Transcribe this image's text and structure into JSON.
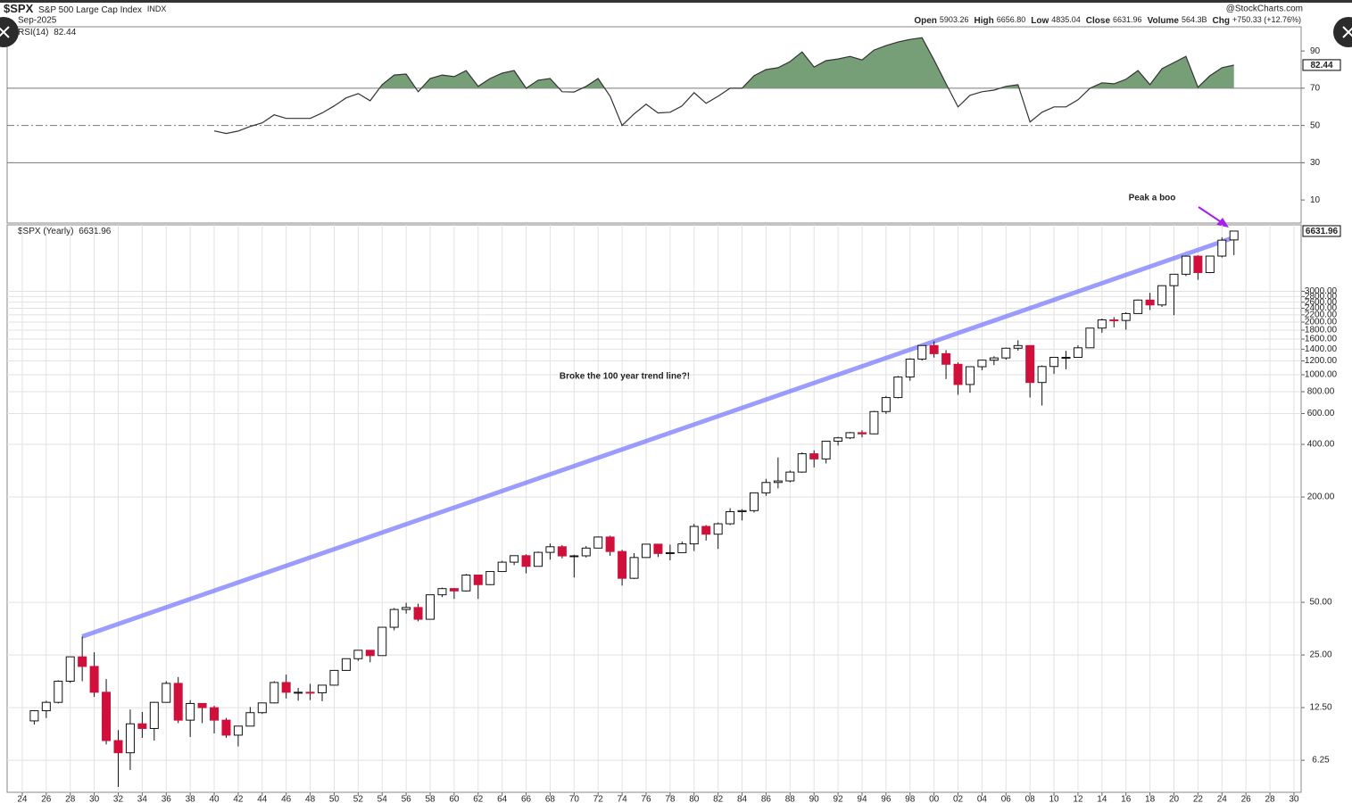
{
  "header": {
    "symbol": "$SPX",
    "name": "S&P 500 Large Cap Index",
    "exchange": "INDX",
    "date": "Sep-2025",
    "stats": [
      {
        "label": "Open",
        "value": "5903.26"
      },
      {
        "label": "High",
        "value": "6656.80"
      },
      {
        "label": "Low",
        "value": "4835.04"
      },
      {
        "label": "Close",
        "value": "6631.96"
      },
      {
        "label": "Volume",
        "value": "564.3B"
      },
      {
        "label": "Chg",
        "value": "+750.33 (+12.76%)"
      }
    ],
    "source": "@StockCharts.com"
  },
  "chart_data": [
    {
      "type": "line",
      "x": [
        1940,
        1941,
        1942,
        1943,
        1944,
        1945,
        1946,
        1947,
        1948,
        1949,
        1950,
        1951,
        1952,
        1953,
        1954,
        1955,
        1956,
        1957,
        1958,
        1959,
        1960,
        1961,
        1962,
        1963,
        1964,
        1965,
        1966,
        1967,
        1968,
        1969,
        1970,
        1971,
        1972,
        1973,
        1974,
        1975,
        1976,
        1977,
        1978,
        1979,
        1980,
        1981,
        1982,
        1983,
        1984,
        1985,
        1986,
        1987,
        1988,
        1989,
        1990,
        1991,
        1992,
        1993,
        1994,
        1995,
        1996,
        1997,
        1998,
        1999,
        2000,
        2001,
        2002,
        2003,
        2004,
        2005,
        2006,
        2007,
        2008,
        2009,
        2010,
        2011,
        2012,
        2013,
        2014,
        2015,
        2016,
        2017,
        2018,
        2019,
        2020,
        2021,
        2022,
        2023,
        2024,
        2025
      ],
      "series": [
        {
          "name": "RSI(14)",
          "color": "#333333",
          "fill_color": "#779f77",
          "fill_above": 70,
          "values": [
            47.1,
            45.7,
            47,
            49.5,
            51.4,
            55.7,
            53.8,
            53.8,
            53.8,
            56.7,
            60.5,
            64.8,
            67.1,
            63.3,
            71.9,
            77.1,
            77.6,
            68.1,
            75.2,
            77.1,
            76.2,
            79.5,
            71,
            75.2,
            78.1,
            79.5,
            70,
            74.3,
            75.2,
            68.1,
            68,
            71,
            75.2,
            65.7,
            50,
            56.2,
            61.4,
            56.7,
            57.1,
            60.5,
            67.6,
            61.9,
            65.7,
            70,
            70,
            76.7,
            80,
            81,
            84.3,
            89.5,
            81.4,
            84.8,
            85.7,
            87.1,
            85.2,
            90.5,
            92.9,
            94.8,
            96.2,
            97.1,
            85.2,
            72.4,
            60,
            66.2,
            68.1,
            69,
            71,
            71.9,
            51.9,
            57.1,
            60,
            60,
            63.8,
            70,
            72.9,
            72.4,
            74.8,
            79.5,
            71.9,
            80.5,
            83.8,
            87.1,
            70.5,
            76.7,
            81,
            82.44
          ]
        }
      ],
      "xlim": [
        1922.74,
        2030.6
      ],
      "ylim": [
        -2.4,
        103
      ],
      "yticks": [
        10,
        30,
        50,
        70,
        90
      ],
      "ref_lines": [
        {
          "value": 30,
          "dash": false
        },
        {
          "value": 50,
          "dash": true
        },
        {
          "value": 70,
          "dash": false
        }
      ]
    },
    {
      "type": "candlestick",
      "title": "$SPX (Yearly)",
      "log_scale": true,
      "grid": true,
      "up_color": "#ffffff",
      "down_color": "#d0103a",
      "x": [
        1925,
        1926,
        1927,
        1928,
        1929,
        1930,
        1931,
        1932,
        1933,
        1934,
        1935,
        1936,
        1937,
        1938,
        1939,
        1940,
        1941,
        1942,
        1943,
        1944,
        1945,
        1946,
        1947,
        1948,
        1949,
        1950,
        1951,
        1952,
        1953,
        1954,
        1955,
        1956,
        1957,
        1958,
        1959,
        1960,
        1961,
        1962,
        1963,
        1964,
        1965,
        1966,
        1967,
        1968,
        1969,
        1970,
        1971,
        1972,
        1973,
        1974,
        1975,
        1976,
        1977,
        1978,
        1979,
        1980,
        1981,
        1982,
        1983,
        1984,
        1985,
        1986,
        1987,
        1988,
        1989,
        1990,
        1991,
        1992,
        1993,
        1994,
        1995,
        1996,
        1997,
        1998,
        1999,
        2000,
        2001,
        2002,
        2003,
        2004,
        2005,
        2006,
        2007,
        2008,
        2009,
        2010,
        2011,
        2012,
        2013,
        2014,
        2015,
        2016,
        2017,
        2018,
        2019,
        2020,
        2021,
        2022,
        2023,
        2024,
        2025
      ],
      "open": [
        10.5,
        12.0,
        13.4,
        17.7,
        24.4,
        21.5,
        15.3,
        8.1,
        6.9,
        10.1,
        9.5,
        13.4,
        17.2,
        10.6,
        13.2,
        12.5,
        10.6,
        8.7,
        9.8,
        11.7,
        13.3,
        17.4,
        15.3,
        15.3,
        15.2,
        16.8,
        20.4,
        23.8,
        26.6,
        24.8,
        36,
        45.5,
        46.7,
        40,
        55.2,
        59.9,
        58.1,
        71.6,
        63.1,
        75,
        84.8,
        92.4,
        80.3,
        96.5,
        103.9,
        92.1,
        92.2,
        102.1,
        118.1,
        97.6,
        68.6,
        90.2,
        107.5,
        95.1,
        96.1,
        107.9,
        135.8,
        122.6,
        140.6,
        164.9,
        167.2,
        211.3,
        242.2,
        247.1,
        277.7,
        353.4,
        330.2,
        417.1,
        435.7,
        466.5,
        459.3,
        615.9,
        740.7,
        970.4,
        1229.2,
        1469.3,
        1320.3,
        1148.1,
        879.8,
        1111.9,
        1211.9,
        1248.3,
        1418.3,
        1468.4,
        903.3,
        1115.1,
        1257.6,
        1257.6,
        1426.2,
        1848.4,
        2058.9,
        2043.9,
        2238.8,
        2673.6,
        2506.9,
        3230.8,
        3756.1,
        4766.2,
        3839.5,
        4769.8,
        5903.26
      ],
      "high": [
        12.1,
        13.7,
        17.9,
        24.4,
        31.9,
        25.9,
        18.2,
        9.3,
        12.2,
        11.8,
        13.5,
        17.7,
        18.7,
        13.8,
        13.2,
        12.8,
        10.9,
        9.8,
        12.6,
        13.3,
        17.7,
        19.3,
        16.2,
        17.1,
        16.8,
        20.4,
        23.8,
        26.6,
        26.7,
        36,
        46.4,
        49.7,
        49.1,
        55.2,
        60.7,
        60.4,
        72.6,
        71.7,
        75,
        86.3,
        92.6,
        94.1,
        97.6,
        108.4,
        106.2,
        93.5,
        104.8,
        119.1,
        120.2,
        99.8,
        95.6,
        107.8,
        107.9,
        106.9,
        111.3,
        140.5,
        138.1,
        143,
        172.7,
        170.4,
        212,
        254,
        336.8,
        283.7,
        359.8,
        369.8,
        418,
        442,
        471,
        482,
        621.7,
        757,
        983.8,
        1241.8,
        1473.1,
        1552.9,
        1383.4,
        1176.9,
        1112.6,
        1217.3,
        1275.8,
        1431.8,
        1576.1,
        1471.8,
        1130.4,
        1262.6,
        1370.6,
        1474.5,
        1849.4,
        2093.6,
        2134.7,
        2277.5,
        2694.9,
        2940.9,
        3247.9,
        3760.2,
        4808.9,
        4818.6,
        4793.3,
        6099.97,
        6656.8
      ],
      "low": [
        10.0,
        10.9,
        13.2,
        17.3,
        17.7,
        14.4,
        7.7,
        4.4,
        5.5,
        8.4,
        8.1,
        13.4,
        10.2,
        8.5,
        10.2,
        8.9,
        8.4,
        7.5,
        9.8,
        11.5,
        13.2,
        14.1,
        13.7,
        13.8,
        13.6,
        16.7,
        20.3,
        23.1,
        22.7,
        24.8,
        34.6,
        43.1,
        38.9,
        40,
        53.6,
        52.3,
        57.6,
        52.3,
        62.7,
        75,
        81.6,
        73.2,
        80.2,
        87.7,
        89.2,
        69.3,
        90.2,
        101.7,
        92.2,
        62.3,
        68.0,
        90,
        90.7,
        86.9,
        96,
        98.2,
        112.8,
        101,
        138.3,
        147,
        163,
        203,
        223.9,
        242.6,
        275.3,
        295.5,
        311,
        394,
        429,
        438.9,
        457,
        597,
        733,
        923,
        1205.5,
        1254,
        945,
        768.6,
        788.9,
        1060.7,
        1136.2,
        1219.3,
        1374.1,
        741,
        666.8,
        1010.9,
        1074.8,
        1257.6,
        1426.2,
        1737.9,
        1867,
        1810.1,
        2238.8,
        2346.6,
        2443.9,
        2191.9,
        3662.7,
        3491.6,
        3808.9,
        4682.1,
        4835.04
      ],
      "close": [
        12.0,
        13.4,
        17.7,
        24.4,
        21.5,
        15.3,
        8.1,
        6.9,
        10.1,
        9.5,
        13.4,
        17.2,
        10.6,
        13.2,
        12.5,
        10.6,
        8.7,
        9.8,
        11.7,
        13.3,
        17.4,
        15.3,
        15.3,
        15.2,
        16.8,
        20.4,
        23.8,
        26.6,
        24.8,
        36,
        45.5,
        46.7,
        40,
        55.2,
        59.9,
        58.1,
        71.6,
        63.1,
        75,
        84.8,
        92.4,
        80.3,
        96.5,
        103.9,
        92.1,
        92.2,
        102.1,
        118.1,
        97.6,
        68.6,
        90.2,
        107.5,
        95.1,
        96.1,
        107.9,
        135.8,
        122.6,
        140.6,
        164.9,
        167.2,
        211.3,
        242.2,
        247.1,
        277.7,
        353.4,
        330.2,
        417.1,
        435.7,
        466.5,
        459.3,
        615.9,
        740.7,
        970.4,
        1229.2,
        1469.3,
        1320.3,
        1148.1,
        879.8,
        1111.9,
        1211.9,
        1248.3,
        1418.3,
        1468.4,
        903.3,
        1115.1,
        1257.6,
        1257.6,
        1426.2,
        1848.4,
        2058.9,
        2043.9,
        2238.8,
        2673.6,
        2506.9,
        3230.8,
        3756.1,
        4766.2,
        3839.5,
        4769.8,
        5881.6,
        6631.96
      ],
      "xlim": [
        1922.74,
        2030.6
      ],
      "ylim": [
        4.1,
        7197
      ],
      "xticks": [
        {
          "value": 1924,
          "label": "24"
        },
        {
          "value": 1926,
          "label": "26"
        },
        {
          "value": 1928,
          "label": "28"
        },
        {
          "value": 1930,
          "label": "30"
        },
        {
          "value": 1932,
          "label": "32"
        },
        {
          "value": 1934,
          "label": "34"
        },
        {
          "value": 1936,
          "label": "36"
        },
        {
          "value": 1938,
          "label": "38"
        },
        {
          "value": 1940,
          "label": "40"
        },
        {
          "value": 1942,
          "label": "42"
        },
        {
          "value": 1944,
          "label": "44"
        },
        {
          "value": 1946,
          "label": "46"
        },
        {
          "value": 1948,
          "label": "48"
        },
        {
          "value": 1950,
          "label": "50"
        },
        {
          "value": 1952,
          "label": "52"
        },
        {
          "value": 1954,
          "label": "54"
        },
        {
          "value": 1956,
          "label": "56"
        },
        {
          "value": 1958,
          "label": "58"
        },
        {
          "value": 1960,
          "label": "60"
        },
        {
          "value": 1962,
          "label": "62"
        },
        {
          "value": 1964,
          "label": "64"
        },
        {
          "value": 1966,
          "label": "66"
        },
        {
          "value": 1968,
          "label": "68"
        },
        {
          "value": 1970,
          "label": "70"
        },
        {
          "value": 1972,
          "label": "72"
        },
        {
          "value": 1974,
          "label": "74"
        },
        {
          "value": 1976,
          "label": "76"
        },
        {
          "value": 1978,
          "label": "78"
        },
        {
          "value": 1980,
          "label": "80"
        },
        {
          "value": 1982,
          "label": "82"
        },
        {
          "value": 1984,
          "label": "84"
        },
        {
          "value": 1986,
          "label": "86"
        },
        {
          "value": 1988,
          "label": "88"
        },
        {
          "value": 1990,
          "label": "90"
        },
        {
          "value": 1992,
          "label": "92"
        },
        {
          "value": 1994,
          "label": "94"
        },
        {
          "value": 1996,
          "label": "96"
        },
        {
          "value": 1998,
          "label": "98"
        },
        {
          "value": 2000,
          "label": "00"
        },
        {
          "value": 2002,
          "label": "02"
        },
        {
          "value": 2004,
          "label": "04"
        },
        {
          "value": 2006,
          "label": "06"
        },
        {
          "value": 2008,
          "label": "08"
        },
        {
          "value": 2010,
          "label": "10"
        },
        {
          "value": 2012,
          "label": "12"
        },
        {
          "value": 2014,
          "label": "14"
        },
        {
          "value": 2016,
          "label": "16"
        },
        {
          "value": 2018,
          "label": "18"
        },
        {
          "value": 2020,
          "label": "20"
        },
        {
          "value": 2022,
          "label": "22"
        },
        {
          "value": 2024,
          "label": "24"
        },
        {
          "value": 2026,
          "label": "26"
        },
        {
          "value": 2028,
          "label": "28"
        },
        {
          "value": 2030,
          "label": "30"
        }
      ],
      "yticks": [
        6.25,
        {
          "value": 12.5,
          "label": "12.50"
        },
        {
          "value": 25,
          "label": "25.00"
        },
        {
          "value": 50,
          "label": "50.00"
        },
        {
          "value": 200,
          "label": "200.00"
        },
        {
          "value": 400,
          "label": "400.00"
        },
        {
          "value": 600,
          "label": "600.00"
        },
        {
          "value": 800,
          "label": "800.00"
        },
        {
          "value": 1000,
          "label": "1000.00"
        },
        {
          "value": 1200,
          "label": "1200.00"
        },
        {
          "value": 1400,
          "label": "1400.00"
        },
        {
          "value": 1600,
          "label": "1600.00"
        },
        {
          "value": 1800,
          "label": "1800.00"
        },
        {
          "value": 2000,
          "label": "2000.00"
        },
        {
          "value": 2200,
          "label": "2200.00"
        },
        {
          "value": 2400,
          "label": "2400.00"
        },
        {
          "value": 2600,
          "label": "2600.00"
        },
        {
          "value": 2800,
          "label": "2800.00"
        },
        {
          "value": 3000,
          "label": "3000.00"
        }
      ],
      "trend_line": {
        "x": [
          1929,
          2025
        ],
        "values": [
          31.9,
          6094
        ],
        "color": "#7b7bff"
      },
      "annotations": [
        {
          "text": "Broke the 100 year trend line?!",
          "color": "#0a1ee0"
        },
        {
          "text": "Peak a boo",
          "color": "#a321e8"
        }
      ]
    }
  ]
}
